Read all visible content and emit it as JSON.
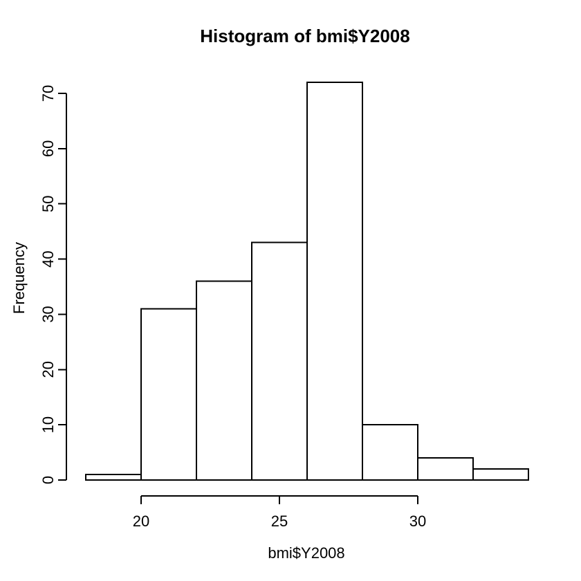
{
  "chart_data": {
    "type": "bar",
    "chart_kind": "histogram",
    "title": "Histogram of bmi$Y2008",
    "xlabel": "bmi$Y2008",
    "ylabel": "Frequency",
    "bin_edges": [
      18,
      20,
      22,
      24,
      26,
      28,
      30,
      32,
      34
    ],
    "counts": [
      1,
      31,
      36,
      43,
      72,
      10,
      4,
      2
    ],
    "x_ticks": [
      20,
      25,
      30
    ],
    "y_ticks": [
      0,
      10,
      20,
      30,
      40,
      50,
      60,
      70
    ],
    "xlim": [
      18,
      34
    ],
    "ylim": [
      0,
      72
    ],
    "grid": false,
    "legend": false,
    "colors": {
      "bar_fill": "#ffffff",
      "bar_stroke": "#000000",
      "axis_color": "#000000",
      "text_color": "#000000",
      "background": "#ffffff"
    }
  }
}
